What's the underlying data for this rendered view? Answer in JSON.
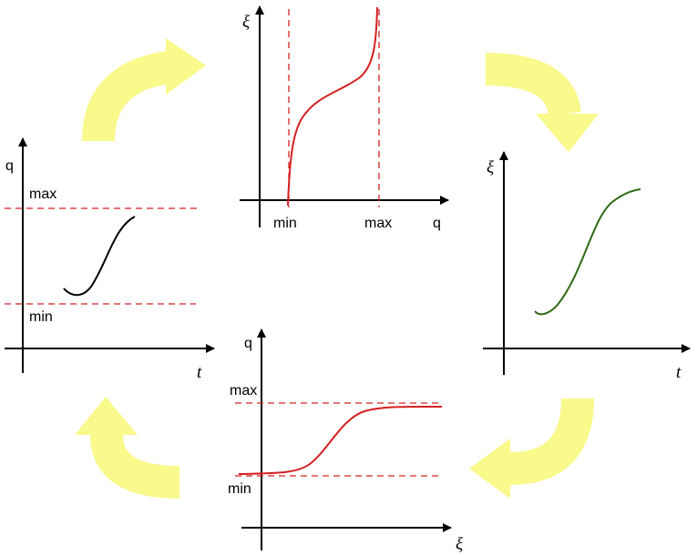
{
  "panels": [
    {
      "y_label": "q",
      "x_label": "t",
      "max": "max",
      "min": "min"
    },
    {
      "y_label": "ξ",
      "x_label": "q",
      "min": "min",
      "max": "max"
    },
    {
      "y_label": "ξ",
      "x_label": "t"
    },
    {
      "y_label": "q",
      "x_label": "ξ",
      "max": "max",
      "min": "min"
    }
  ]
}
